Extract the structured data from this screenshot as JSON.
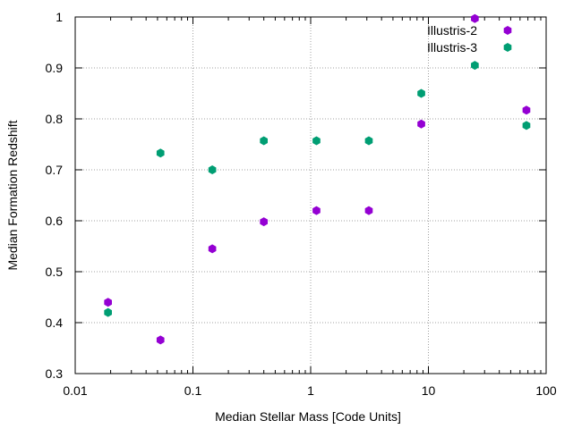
{
  "chart_data": {
    "type": "scatter",
    "xscale": "log",
    "xlim": [
      0.01,
      100
    ],
    "ylim": [
      0.3,
      1.0
    ],
    "xticks": [
      0.01,
      0.1,
      1,
      10,
      100
    ],
    "xtick_labels": [
      "0.01",
      "0.1",
      "1",
      "10",
      "100"
    ],
    "yticks": [
      0.3,
      0.4,
      0.5,
      0.6,
      0.7,
      0.8,
      0.9,
      1.0
    ],
    "ytick_labels": [
      "0.3",
      "0.4",
      "0.5",
      "0.6",
      "0.7",
      "0.8",
      "0.9",
      "1"
    ],
    "xlabel": "Median Stellar Mass [Code Units]",
    "ylabel": "Median Formation Redshift",
    "grid": true,
    "legend_position": "top-right",
    "series": [
      {
        "name": "Illustris-2",
        "color": "#9400D3",
        "x": [
          0.019,
          0.053,
          0.146,
          0.4,
          1.12,
          3.12,
          8.7,
          24.8,
          68.0
        ],
        "y": [
          0.44,
          0.366,
          0.545,
          0.598,
          0.62,
          0.62,
          0.79,
          0.997,
          0.817
        ]
      },
      {
        "name": "Illustris-3",
        "color": "#009E73",
        "x": [
          0.019,
          0.053,
          0.146,
          0.4,
          1.12,
          3.12,
          8.7,
          24.8,
          68.0
        ],
        "y": [
          0.42,
          0.733,
          0.7,
          0.757,
          0.757,
          0.757,
          0.85,
          0.905,
          0.787
        ]
      }
    ]
  }
}
